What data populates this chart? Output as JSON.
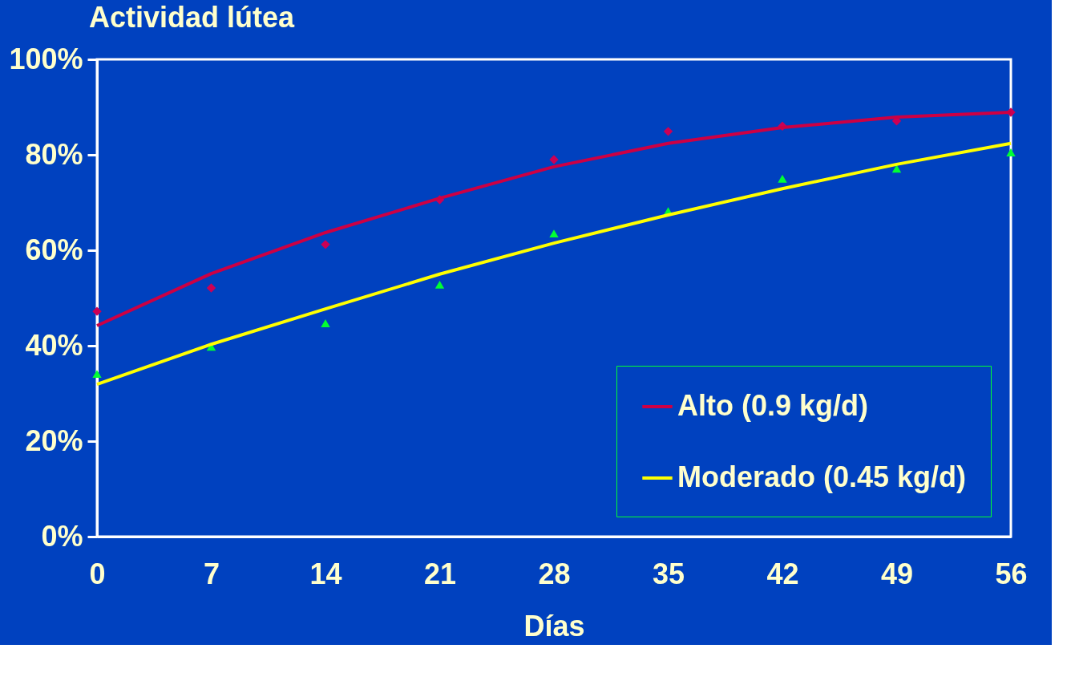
{
  "chart_data": {
    "type": "line",
    "title": "Actividad lútea",
    "xlabel": "Días",
    "x": [
      0,
      7,
      14,
      21,
      28,
      35,
      42,
      49,
      56
    ],
    "series": [
      {
        "type": "scatter",
        "color": "#cc0055",
        "marker": "diamond",
        "values": [
          47.2,
          52.1,
          61.2,
          70.6,
          79.0,
          84.9,
          86.0,
          87.1,
          88.9
        ]
      },
      {
        "type": "scatter",
        "color": "#00ff33",
        "marker": "triangle",
        "values": [
          34.1,
          39.8,
          44.7,
          52.8,
          63.5,
          68.2,
          75.0,
          77.1,
          80.5
        ]
      },
      {
        "type": "line",
        "name": "Alto (0.9 kg/d)",
        "color": "#cc0044",
        "values": [
          44.2,
          55.1,
          63.7,
          70.9,
          77.5,
          82.4,
          85.7,
          87.9,
          88.9
        ]
      },
      {
        "type": "line",
        "name": "Moderado (0.45 kg/d)",
        "color": "#ffff00",
        "values": [
          31.9,
          40.3,
          47.7,
          55.0,
          61.5,
          67.4,
          72.9,
          78.0,
          82.4
        ]
      }
    ],
    "xlim": [
      0,
      56
    ],
    "xticks": [
      0,
      7,
      14,
      21,
      28,
      35,
      42,
      49,
      56
    ],
    "ylim": [
      0,
      100
    ],
    "yticks": [
      {
        "value": 0,
        "label": "0%"
      },
      {
        "value": 20,
        "label": "20%"
      },
      {
        "value": 40,
        "label": "40%"
      },
      {
        "value": 60,
        "label": "60%"
      },
      {
        "value": 80,
        "label": "80%"
      },
      {
        "value": 100,
        "label": "100%"
      }
    ],
    "grid": false,
    "legend": "bottom right",
    "line_style": "solid"
  }
}
